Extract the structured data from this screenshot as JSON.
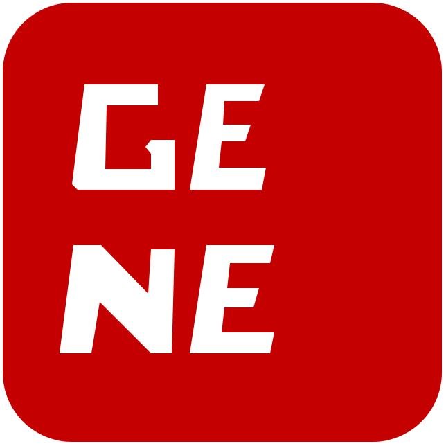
{
  "icon": {
    "name": "gene-app-icon",
    "wordmark_line1": "GE",
    "wordmark_line2": "NE",
    "background_color": "#c40000",
    "letter_color": "#ffffff"
  }
}
